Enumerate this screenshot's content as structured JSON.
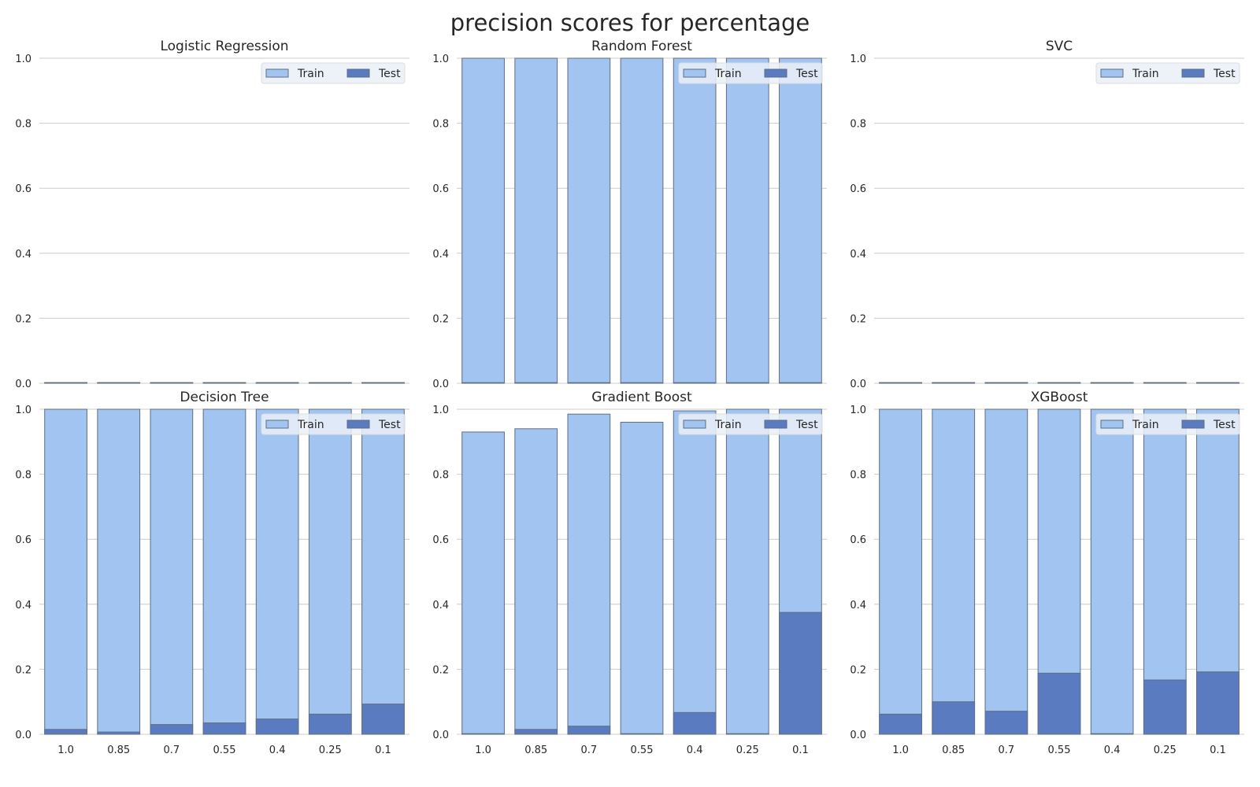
{
  "colors": {
    "train": "#a1c4f0",
    "test": "#5a7bbf",
    "bar_edge": "#5f6e84",
    "grid": "#cccccc",
    "text": "#262626"
  },
  "chart_data": {
    "suptitle": "precision scores for percentage",
    "type": "bar",
    "categories": [
      "1.0",
      "0.85",
      "0.7",
      "0.55",
      "0.4",
      "0.25",
      "0.1"
    ],
    "ylim": [
      0,
      1
    ],
    "yticks": [
      "0.0",
      "0.2",
      "0.4",
      "0.6",
      "0.8",
      "1.0"
    ],
    "grid": true,
    "legend_placement": "top-right",
    "legend": [
      "Train",
      "Test"
    ],
    "panels": [
      {
        "title": "Logistic Regression",
        "series": [
          {
            "name": "Train",
            "values": [
              0,
              0,
              0,
              0,
              0,
              0,
              0
            ]
          },
          {
            "name": "Test",
            "values": [
              0,
              0,
              0,
              0,
              0,
              0,
              0
            ]
          }
        ]
      },
      {
        "title": "Random Forest",
        "series": [
          {
            "name": "Train",
            "values": [
              1.0,
              1.0,
              1.0,
              1.0,
              1.0,
              1.0,
              1.0
            ]
          },
          {
            "name": "Test",
            "values": [
              0,
              0,
              0,
              0,
              0,
              0,
              0
            ]
          }
        ]
      },
      {
        "title": "SVC",
        "series": [
          {
            "name": "Train",
            "values": [
              0,
              0,
              0,
              0,
              0,
              0,
              0
            ]
          },
          {
            "name": "Test",
            "values": [
              0,
              0,
              0,
              0,
              0,
              0,
              0
            ]
          }
        ]
      },
      {
        "title": "Decision Tree",
        "series": [
          {
            "name": "Train",
            "values": [
              1.0,
              1.0,
              1.0,
              1.0,
              1.0,
              1.0,
              1.0
            ]
          },
          {
            "name": "Test",
            "values": [
              0.015,
              0.007,
              0.03,
              0.035,
              0.047,
              0.062,
              0.093
            ]
          }
        ]
      },
      {
        "title": "Gradient Boost",
        "series": [
          {
            "name": "Train",
            "values": [
              0.93,
              0.94,
              0.985,
              0.96,
              0.995,
              1.0,
              1.0
            ]
          },
          {
            "name": "Test",
            "values": [
              0,
              0.015,
              0.025,
              0,
              0.067,
              0,
              0.375
            ]
          }
        ]
      },
      {
        "title": "XGBoost",
        "series": [
          {
            "name": "Train",
            "values": [
              1.0,
              1.0,
              1.0,
              1.0,
              1.0,
              1.0,
              1.0
            ]
          },
          {
            "name": "Test",
            "values": [
              0.062,
              0.1,
              0.071,
              0.188,
              0,
              0.167,
              0.192
            ]
          }
        ]
      }
    ]
  }
}
